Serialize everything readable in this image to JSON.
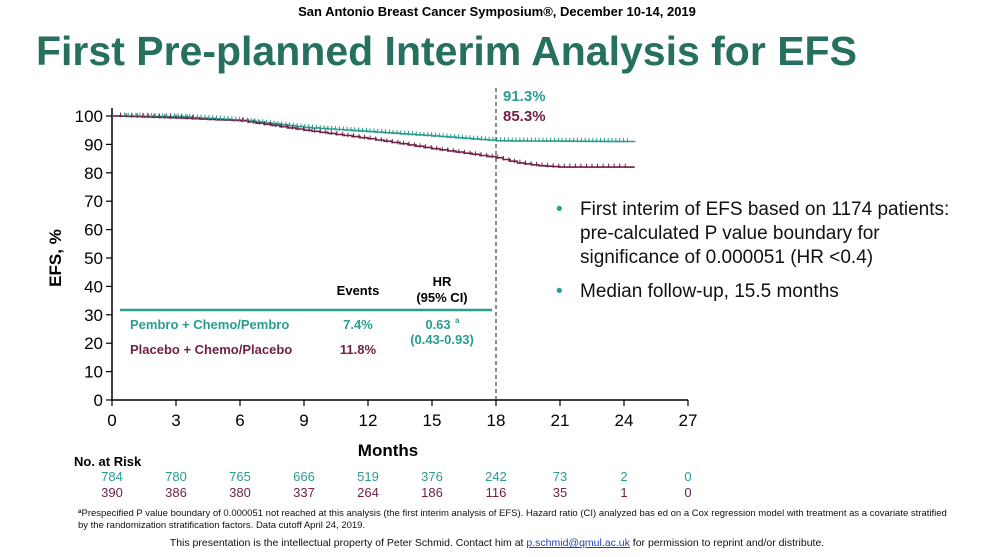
{
  "header": {
    "conference": "San Antonio Breast Cancer Symposium®, December 10-14, 2019",
    "title": "First Pre-planned Interim Analysis for EFS"
  },
  "colors": {
    "pembro": "#2a9d8f",
    "placebo": "#722046",
    "title": "#26705f"
  },
  "chart_data": {
    "type": "line",
    "xlabel": "Months",
    "ylabel": "EFS, %",
    "xlim": [
      0,
      27
    ],
    "ylim": [
      0,
      100
    ],
    "xticks": [
      0,
      3,
      6,
      9,
      12,
      15,
      18,
      21,
      24,
      27
    ],
    "yticks": [
      0,
      10,
      20,
      30,
      40,
      50,
      60,
      70,
      80,
      90,
      100
    ],
    "reference_line_x": 18,
    "landmark_labels": [
      "91.3%",
      "85.3%"
    ],
    "series": [
      {
        "name": "Pembro + Chemo/Pembro",
        "color": "#2a9d8f",
        "x": [
          0,
          3,
          6,
          9,
          12,
          15,
          18,
          19.5,
          24.5
        ],
        "y": [
          100,
          99.8,
          98.5,
          96,
          94.5,
          93,
          91.3,
          91.2,
          91
        ]
      },
      {
        "name": "Placebo + Chemo/Placebo",
        "color": "#722046",
        "x": [
          0,
          3,
          6,
          9,
          12,
          15,
          18,
          19,
          20,
          21,
          24.5
        ],
        "y": [
          100,
          99.3,
          98.3,
          95,
          92,
          88.5,
          85.3,
          83.5,
          82.5,
          82,
          82
        ]
      }
    ],
    "table": {
      "headers": {
        "events": "Events",
        "hr": "HR",
        "ci": "(95% CI)"
      },
      "rows": [
        {
          "name": "Pembro + Chemo/Pembro",
          "events": "7.4%",
          "hr": "0.63",
          "hr_sup": "a",
          "ci": "(0.43-0.93)"
        },
        {
          "name": "Placebo + Chemo/Placebo",
          "events": "11.8%"
        }
      ]
    },
    "at_risk": {
      "label": "No. at Risk",
      "months": [
        0,
        3,
        6,
        9,
        12,
        15,
        18,
        21,
        24,
        27
      ],
      "pembro": [
        "784",
        "780",
        "765",
        "666",
        "519",
        "376",
        "242",
        "73",
        "2",
        "0"
      ],
      "placebo": [
        "390",
        "386",
        "380",
        "337",
        "264",
        "186",
        "116",
        "35",
        "1",
        "0"
      ]
    }
  },
  "bullets": [
    "First interim of EFS based on 1174 patients: pre-calculated P value boundary for significance of 0.000051 (HR <0.4)",
    "Median follow-up, 15.5 months"
  ],
  "footnote": "ªPrespecified P value boundary of 0.000051 not reached at this analysis (the first interim analysis of EFS). Hazard ratio (CI) analyzed bas ed on a Cox regression model with treatment as a covariate stratified by the randomization stratification factors. Data cutoff April 24, 2019.",
  "ip_notice": {
    "before": "This presentation is the intellectual property of Peter Schmid. Contact him at",
    "email": "p.schmid@qmul.ac.uk",
    "after": "for permission to reprint and/or distribute."
  }
}
